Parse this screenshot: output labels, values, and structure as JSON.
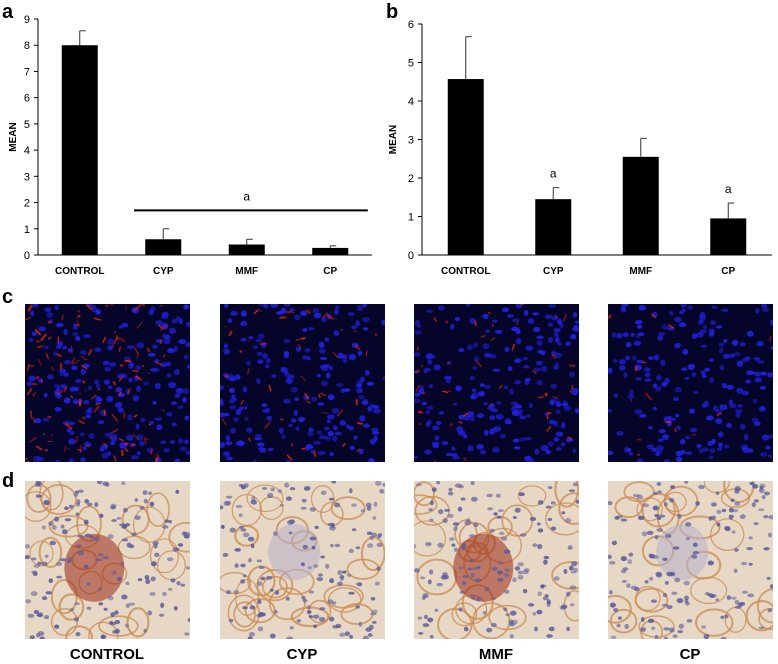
{
  "panel_letters": {
    "a": "a",
    "b": "b",
    "c": "c",
    "d": "d"
  },
  "chart_data": [
    {
      "type": "bar",
      "panel": "a",
      "ylabel": "MEAN",
      "xlabel": "",
      "ylim": [
        0,
        9
      ],
      "yticks": [
        0,
        1,
        2,
        3,
        4,
        5,
        6,
        7,
        8,
        9
      ],
      "categories": [
        "CONTROL",
        "CYP",
        "MMF",
        "CP"
      ],
      "values": [
        8.0,
        0.6,
        0.4,
        0.27
      ],
      "errors": [
        0.55,
        0.4,
        0.2,
        0.08
      ],
      "bar_color": "#000000",
      "annotations": [
        {
          "text": "a",
          "spans": [
            "CYP",
            "MMF",
            "CP"
          ],
          "y": 1.7
        }
      ]
    },
    {
      "type": "bar",
      "panel": "b",
      "ylabel": "MEAN",
      "xlabel": "",
      "ylim": [
        0,
        6
      ],
      "yticks": [
        0,
        1,
        2,
        3,
        4,
        5,
        6
      ],
      "categories": [
        "CONTROL",
        "CYP",
        "MMF",
        "CP"
      ],
      "values": [
        4.57,
        1.45,
        2.55,
        0.95
      ],
      "errors": [
        1.1,
        0.3,
        0.48,
        0.4
      ],
      "bar_color": "#000000",
      "annotations": [
        {
          "text": "a",
          "category": "CYP"
        },
        {
          "text": "a",
          "category": "CP"
        }
      ]
    }
  ],
  "fluorescence_panels": [
    {
      "seed": 11,
      "red": 0.9
    },
    {
      "seed": 23,
      "red": 0.35
    },
    {
      "seed": 37,
      "red": 0.3
    },
    {
      "seed": 51,
      "red": 0.1
    }
  ],
  "ihc_panels": [
    {
      "label": "CONTROL",
      "seed": 5,
      "stain": 0.85
    },
    {
      "label": "CYP",
      "seed": 17,
      "stain": 0.1
    },
    {
      "label": "MMF",
      "seed": 29,
      "stain": 0.75
    },
    {
      "label": "CP",
      "seed": 43,
      "stain": 0.15
    }
  ],
  "colors": {
    "nuclei": "#2020d8",
    "red_stain": "#e02010",
    "fluor_bg": "#05052a",
    "ihc_bg": "#e6d8c4",
    "ihc_stain": "#9a2a18",
    "ihc_nuclei": "#5a5a9a"
  }
}
